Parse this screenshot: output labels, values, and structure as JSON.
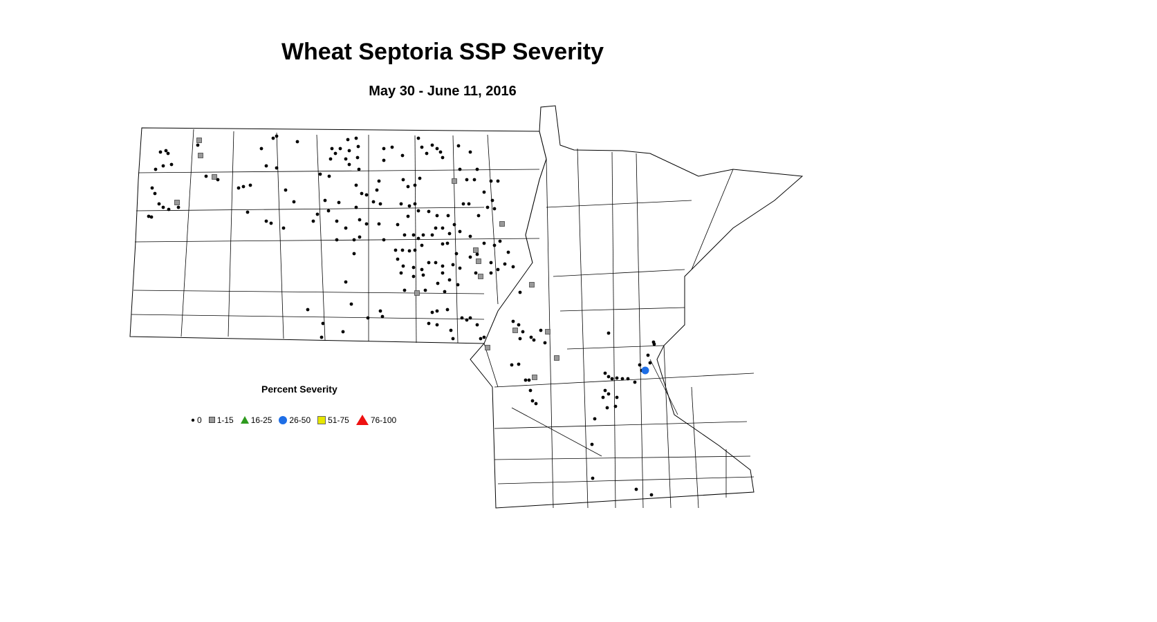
{
  "title": "Wheat Septoria SSP Severity",
  "subtitle": "May 30 - June 11, 2016",
  "legend": {
    "title": "Percent Severity",
    "items": [
      {
        "label": "0",
        "shape": "dot",
        "color": "#000000"
      },
      {
        "label": "1-15",
        "shape": "square",
        "color": "#999999"
      },
      {
        "label": "16-25",
        "shape": "triangle",
        "color": "#2e9a1e"
      },
      {
        "label": "26-50",
        "shape": "circle",
        "color": "#1e6ee6"
      },
      {
        "label": "51-75",
        "shape": "square",
        "color": "#e6e600"
      },
      {
        "label": "76-100",
        "shape": "triangle",
        "color": "#ee1111"
      }
    ]
  }
}
